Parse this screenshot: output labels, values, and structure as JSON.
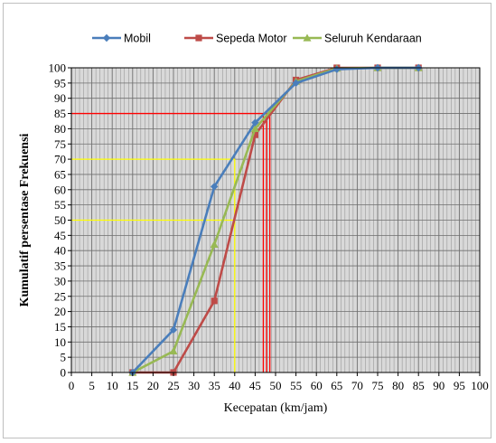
{
  "chart_data": {
    "type": "line",
    "title": "",
    "xlabel": "Kecepatan (km/jam)",
    "ylabel": "Kumulatif persentase Frekuensi",
    "xlim": [
      0,
      100
    ],
    "ylim": [
      0,
      100
    ],
    "x_ticks": [
      0,
      5,
      10,
      15,
      20,
      25,
      30,
      35,
      40,
      45,
      50,
      55,
      60,
      65,
      70,
      75,
      80,
      85,
      90,
      95,
      100
    ],
    "y_ticks": [
      0,
      5,
      10,
      15,
      20,
      25,
      30,
      35,
      40,
      45,
      50,
      55,
      60,
      65,
      70,
      75,
      80,
      85,
      90,
      95,
      100
    ],
    "grid": true,
    "legend_position": "top",
    "series": [
      {
        "name": "Mobil",
        "color": "#4a7ebb",
        "marker": "diamond",
        "x": [
          15,
          25,
          35,
          45,
          55,
          65,
          75,
          85
        ],
        "y": [
          0,
          14,
          61,
          82,
          95,
          99.5,
          100,
          100
        ]
      },
      {
        "name": "Sepeda Motor",
        "color": "#be4b48",
        "marker": "square",
        "x": [
          15,
          25,
          35,
          45,
          55,
          65,
          75,
          85
        ],
        "y": [
          0,
          0,
          23.5,
          78,
          96,
          100,
          100,
          100
        ]
      },
      {
        "name": "Seluruh Kendaraan",
        "color": "#98b954",
        "marker": "triangle",
        "x": [
          15,
          25,
          35,
          45,
          55,
          65,
          75,
          85
        ],
        "y": [
          0,
          7,
          42,
          80,
          95.5,
          99.8,
          100,
          100
        ]
      }
    ],
    "reference_lines": [
      {
        "color": "#ff0000",
        "y": 85,
        "x_end": 48.5,
        "x_drops": [
          47,
          47.8,
          48.6
        ]
      },
      {
        "color": "#ffff00",
        "y": 70,
        "x_end": 40,
        "x_drops": [
          40
        ]
      },
      {
        "color": "#ffff00",
        "y": 50,
        "x_end": 40,
        "x_drops": []
      }
    ]
  }
}
